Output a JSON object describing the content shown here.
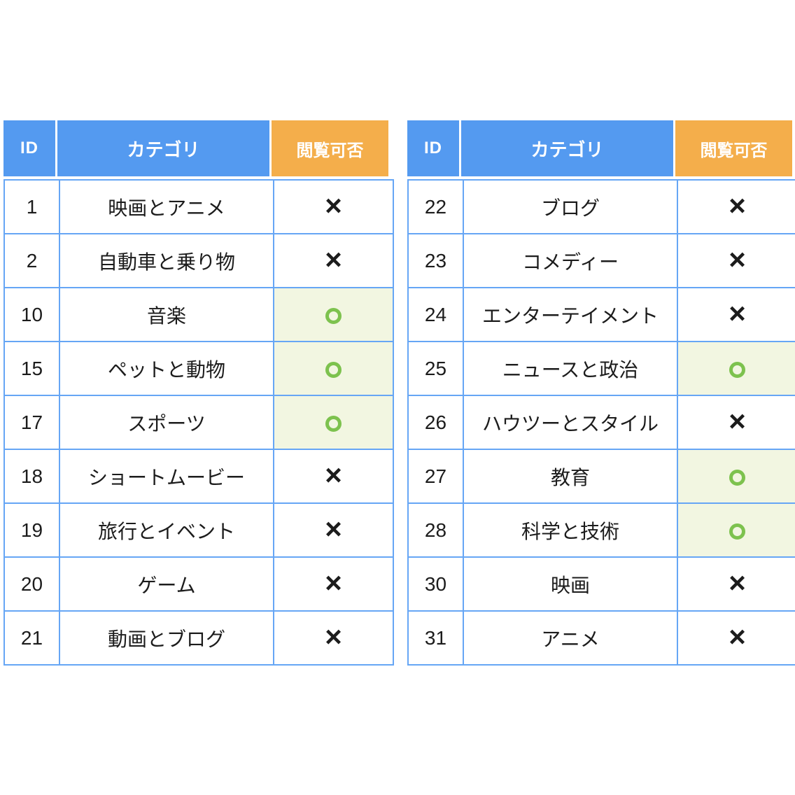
{
  "colors": {
    "header_blue": "#549af0",
    "header_orange": "#f4ae4b",
    "border_blue": "#66a6f5",
    "ok_green": "#7dc24e",
    "ok_bg": "#f2f6e1",
    "text_dark": "#1c1c1c",
    "header_text": "#ffffff"
  },
  "status_glyphs": {
    "allowed": "○",
    "denied": "×"
  },
  "tables": [
    {
      "name": "left",
      "headers": {
        "id": "ID",
        "category": "カテゴリ",
        "viewable": "閲覧可否"
      },
      "rows": [
        {
          "id": "1",
          "category": "映画とアニメ",
          "status": "×"
        },
        {
          "id": "2",
          "category": "自動車と乗り物",
          "status": "×"
        },
        {
          "id": "10",
          "category": "音楽",
          "status": "○"
        },
        {
          "id": "15",
          "category": "ペットと動物",
          "status": "○"
        },
        {
          "id": "17",
          "category": "スポーツ",
          "status": "○"
        },
        {
          "id": "18",
          "category": "ショートムービー",
          "status": "×"
        },
        {
          "id": "19",
          "category": "旅行とイベント",
          "status": "×"
        },
        {
          "id": "20",
          "category": "ゲーム",
          "status": "×"
        },
        {
          "id": "21",
          "category": "動画とブログ",
          "status": "×"
        }
      ]
    },
    {
      "name": "right",
      "headers": {
        "id": "ID",
        "category": "カテゴリ",
        "viewable": "閲覧可否"
      },
      "rows": [
        {
          "id": "22",
          "category": "ブログ",
          "status": "×"
        },
        {
          "id": "23",
          "category": "コメディー",
          "status": "×"
        },
        {
          "id": "24",
          "category": "エンターテイメント",
          "status": "×"
        },
        {
          "id": "25",
          "category": "ニュースと政治",
          "status": "○"
        },
        {
          "id": "26",
          "category": "ハウツーとスタイル",
          "status": "×"
        },
        {
          "id": "27",
          "category": "教育",
          "status": "○"
        },
        {
          "id": "28",
          "category": "科学と技術",
          "status": "○"
        },
        {
          "id": "30",
          "category": "映画",
          "status": "×"
        },
        {
          "id": "31",
          "category": "アニメ",
          "status": "×"
        }
      ]
    }
  ]
}
